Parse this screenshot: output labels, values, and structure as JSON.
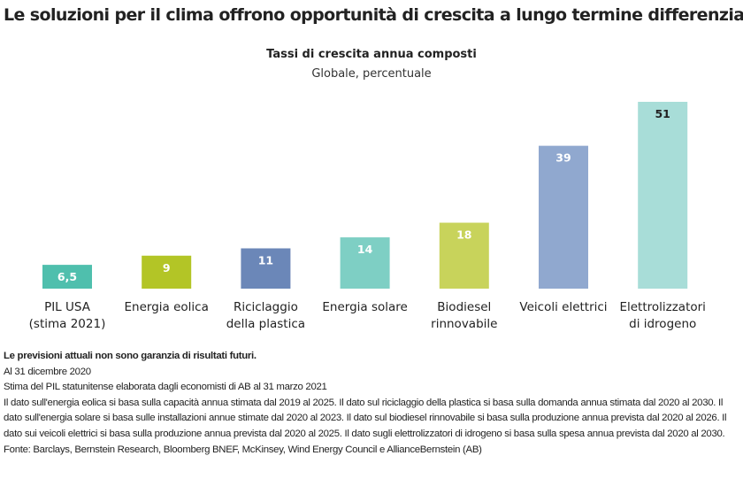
{
  "chart_data": {
    "type": "bar",
    "title": "Le soluzioni per il clima offrono opportunità di crescita a lungo termine differenziate",
    "subtitle": "Tassi di crescita annua composti",
    "subtitle2": "Globale, percentuale",
    "categories": [
      [
        "PIL USA",
        "(stima 2021)"
      ],
      [
        "Energia eolica"
      ],
      [
        "Riciclaggio",
        "della plastica"
      ],
      [
        "Energia solare"
      ],
      [
        "Biodiesel",
        "rinnovabile"
      ],
      [
        "Veicoli elettrici"
      ],
      [
        "Elettrolizzatori",
        "di idrogeno"
      ]
    ],
    "values": [
      6.5,
      9,
      11,
      14,
      18,
      39,
      51
    ],
    "value_labels": [
      "6,5",
      "9",
      "11",
      "14",
      "18",
      "39",
      "51"
    ],
    "colors": [
      "#4fbfad",
      "#b3c526",
      "#6b87b8",
      "#7ecfc4",
      "#c8d35b",
      "#90a8cf",
      "#a8ddd8"
    ],
    "label_colors": [
      "#ffffff",
      "#ffffff",
      "#ffffff",
      "#ffffff",
      "#ffffff",
      "#ffffff",
      "#222222"
    ],
    "ylim": [
      0,
      51
    ],
    "xlabel": "",
    "ylabel": "",
    "grid": false
  },
  "notes": {
    "disclaimer": "Le previsioni attuali non sono garanzia di risultati futuri.",
    "date": "Al 31 dicembre 2020",
    "gdp": "Stima del PIL statunitense elaborata dagli economisti di AB al 31 marzo 2021",
    "details": "Il dato sull'energia eolica si basa sulla capacità annua stimata dal 2019 al 2025. Il dato sul riciclaggio della plastica si basa sulla domanda annua stimata dal 2020 al 2030. Il dato sull'energia solare si basa sulle installazioni annue stimate dal 2020 al 2023. Il dato sul biodiesel rinnovabile si basa sulla produzione annua prevista dal 2020 al 2026. Il dato sui veicoli elettrici si basa sulla produzione annua prevista dal 2020 al 2025. Il dato sugli elettrolizzatori di idrogeno si basa sulla spesa annua prevista dal 2020 al 2030.",
    "source": "Fonte: Barclays, Bernstein Research, Bloomberg BNEF, McKinsey, Wind Energy Council e AllianceBernstein (AB)"
  }
}
